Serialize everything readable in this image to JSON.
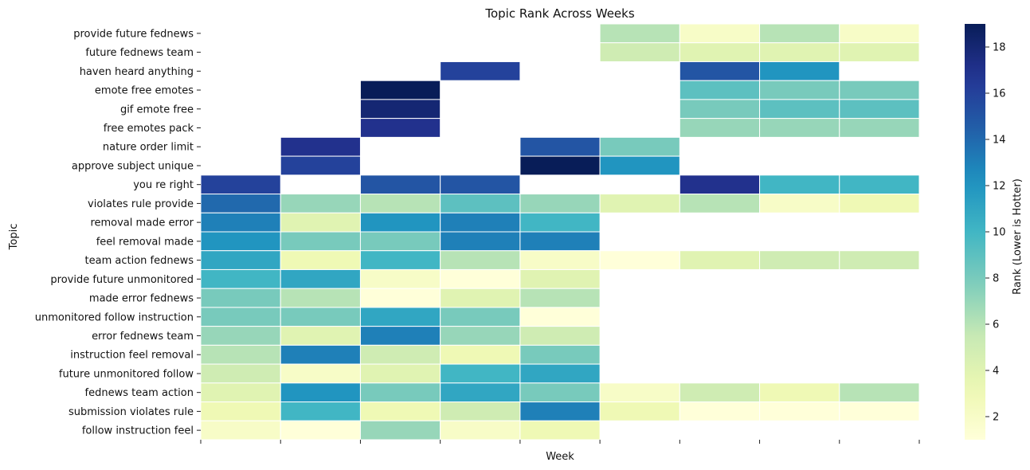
{
  "chart_data": {
    "type": "heatmap",
    "title": "Topic Rank Across Weeks",
    "xlabel": "Week",
    "ylabel": "Topic",
    "colorbar": {
      "label": "Rank (Lower is Hotter)",
      "ticks": [
        2,
        4,
        6,
        8,
        10,
        12,
        14,
        16,
        18
      ],
      "range": [
        1,
        19
      ],
      "colormap": "YlGnBu"
    },
    "rows": [
      "provide future fednews",
      "future fednews team",
      "haven heard anything",
      "emote free emotes",
      "gif emote free",
      "free emotes pack",
      "nature order limit",
      "approve subject unique",
      "you re right",
      "violates rule provide",
      "removal made error",
      "feel removal made",
      "team action fednews",
      "provide future unmonitored",
      "made error fednews",
      "unmonitored follow instruction",
      "error fednews team",
      "instruction feel removal",
      "future unmonitored follow",
      "fednews team action",
      "submission violates rule",
      "follow instruction feel"
    ],
    "weeks": [
      "",
      "",
      "",
      "",
      "",
      "",
      "",
      "",
      ""
    ],
    "values": [
      [
        null,
        null,
        null,
        null,
        null,
        6,
        2,
        6,
        2
      ],
      [
        null,
        null,
        null,
        null,
        null,
        5,
        4,
        4,
        4
      ],
      [
        null,
        null,
        null,
        16,
        null,
        null,
        15,
        12,
        null
      ],
      [
        null,
        null,
        19,
        null,
        null,
        null,
        9,
        8,
        8
      ],
      [
        null,
        null,
        18,
        null,
        null,
        null,
        8,
        9,
        9
      ],
      [
        null,
        null,
        17,
        null,
        null,
        null,
        7,
        7,
        7
      ],
      [
        null,
        17,
        null,
        null,
        15,
        8,
        null,
        null,
        null
      ],
      [
        null,
        16,
        null,
        null,
        19,
        12,
        null,
        null,
        null
      ],
      [
        16,
        null,
        15,
        15,
        null,
        null,
        17,
        10,
        10
      ],
      [
        14,
        7,
        6,
        9,
        7,
        4,
        6,
        2,
        3
      ],
      [
        13,
        4,
        12,
        13,
        10,
        null,
        null,
        null,
        null
      ],
      [
        12,
        8,
        8,
        13,
        13,
        null,
        null,
        null,
        null
      ],
      [
        11,
        3,
        10,
        6,
        2,
        1,
        4,
        5,
        5
      ],
      [
        10,
        11,
        2,
        1,
        4,
        null,
        null,
        null,
        null
      ],
      [
        8,
        6,
        1,
        4,
        6,
        null,
        null,
        null,
        null
      ],
      [
        8,
        8,
        11,
        8,
        1,
        null,
        null,
        null,
        null
      ],
      [
        7,
        4,
        13,
        7,
        5,
        null,
        null,
        null,
        null
      ],
      [
        6,
        13,
        5,
        3,
        8,
        null,
        null,
        null,
        null
      ],
      [
        5,
        2,
        4,
        10,
        11,
        null,
        null,
        null,
        null
      ],
      [
        4,
        12,
        8,
        11,
        8,
        2,
        5,
        3,
        6
      ],
      [
        3,
        10,
        3,
        5,
        13,
        3,
        1,
        1,
        1
      ],
      [
        2,
        1,
        7,
        2,
        3,
        null,
        null,
        null,
        null
      ]
    ]
  }
}
